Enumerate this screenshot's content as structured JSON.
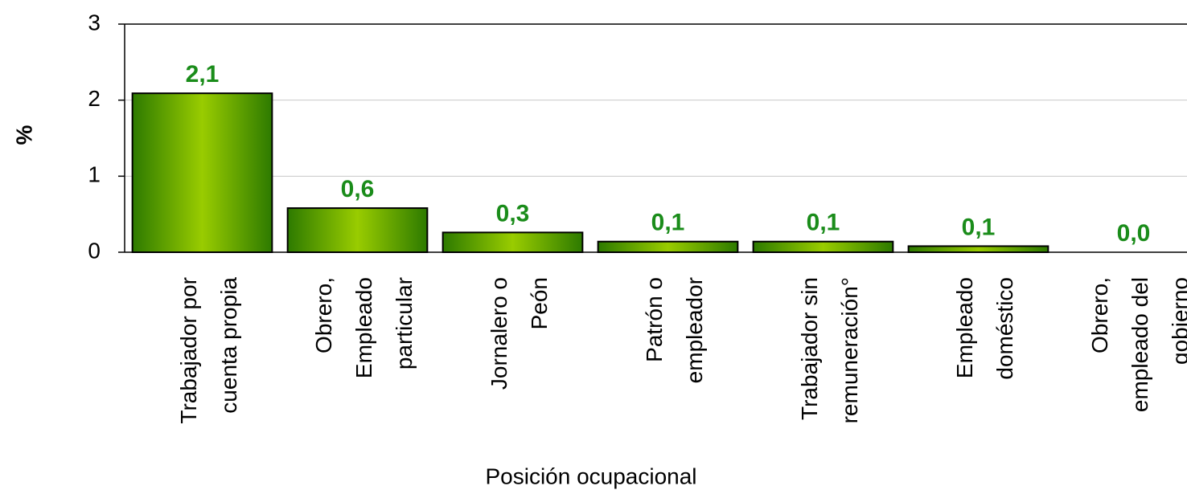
{
  "chart_data": {
    "type": "bar",
    "y_label": "%",
    "x_label": "Posición ocupacional",
    "categories": [
      [
        "Trabajador por",
        "cuenta propia"
      ],
      [
        "Obrero,",
        "Empleado",
        "particular"
      ],
      [
        "Jornalero o",
        "Peón"
      ],
      [
        "Patrón o",
        "empleador"
      ],
      [
        "Trabajador sin",
        "remuneración°"
      ],
      [
        "Empleado",
        "doméstico"
      ],
      [
        "Obrero,",
        "empleado del",
        "gobierno"
      ]
    ],
    "values": [
      2.09,
      0.58,
      0.26,
      0.14,
      0.14,
      0.08,
      0
    ],
    "value_labels": [
      "2,1",
      "0,6",
      "0,3",
      "0,1",
      "0,1",
      "0,1",
      "0,0"
    ],
    "color": "#99cc00",
    "label_color": "#1a8c1a",
    "ylim": [
      0,
      3
    ],
    "yticks": [
      0,
      1,
      2,
      3
    ],
    "grid": true
  }
}
